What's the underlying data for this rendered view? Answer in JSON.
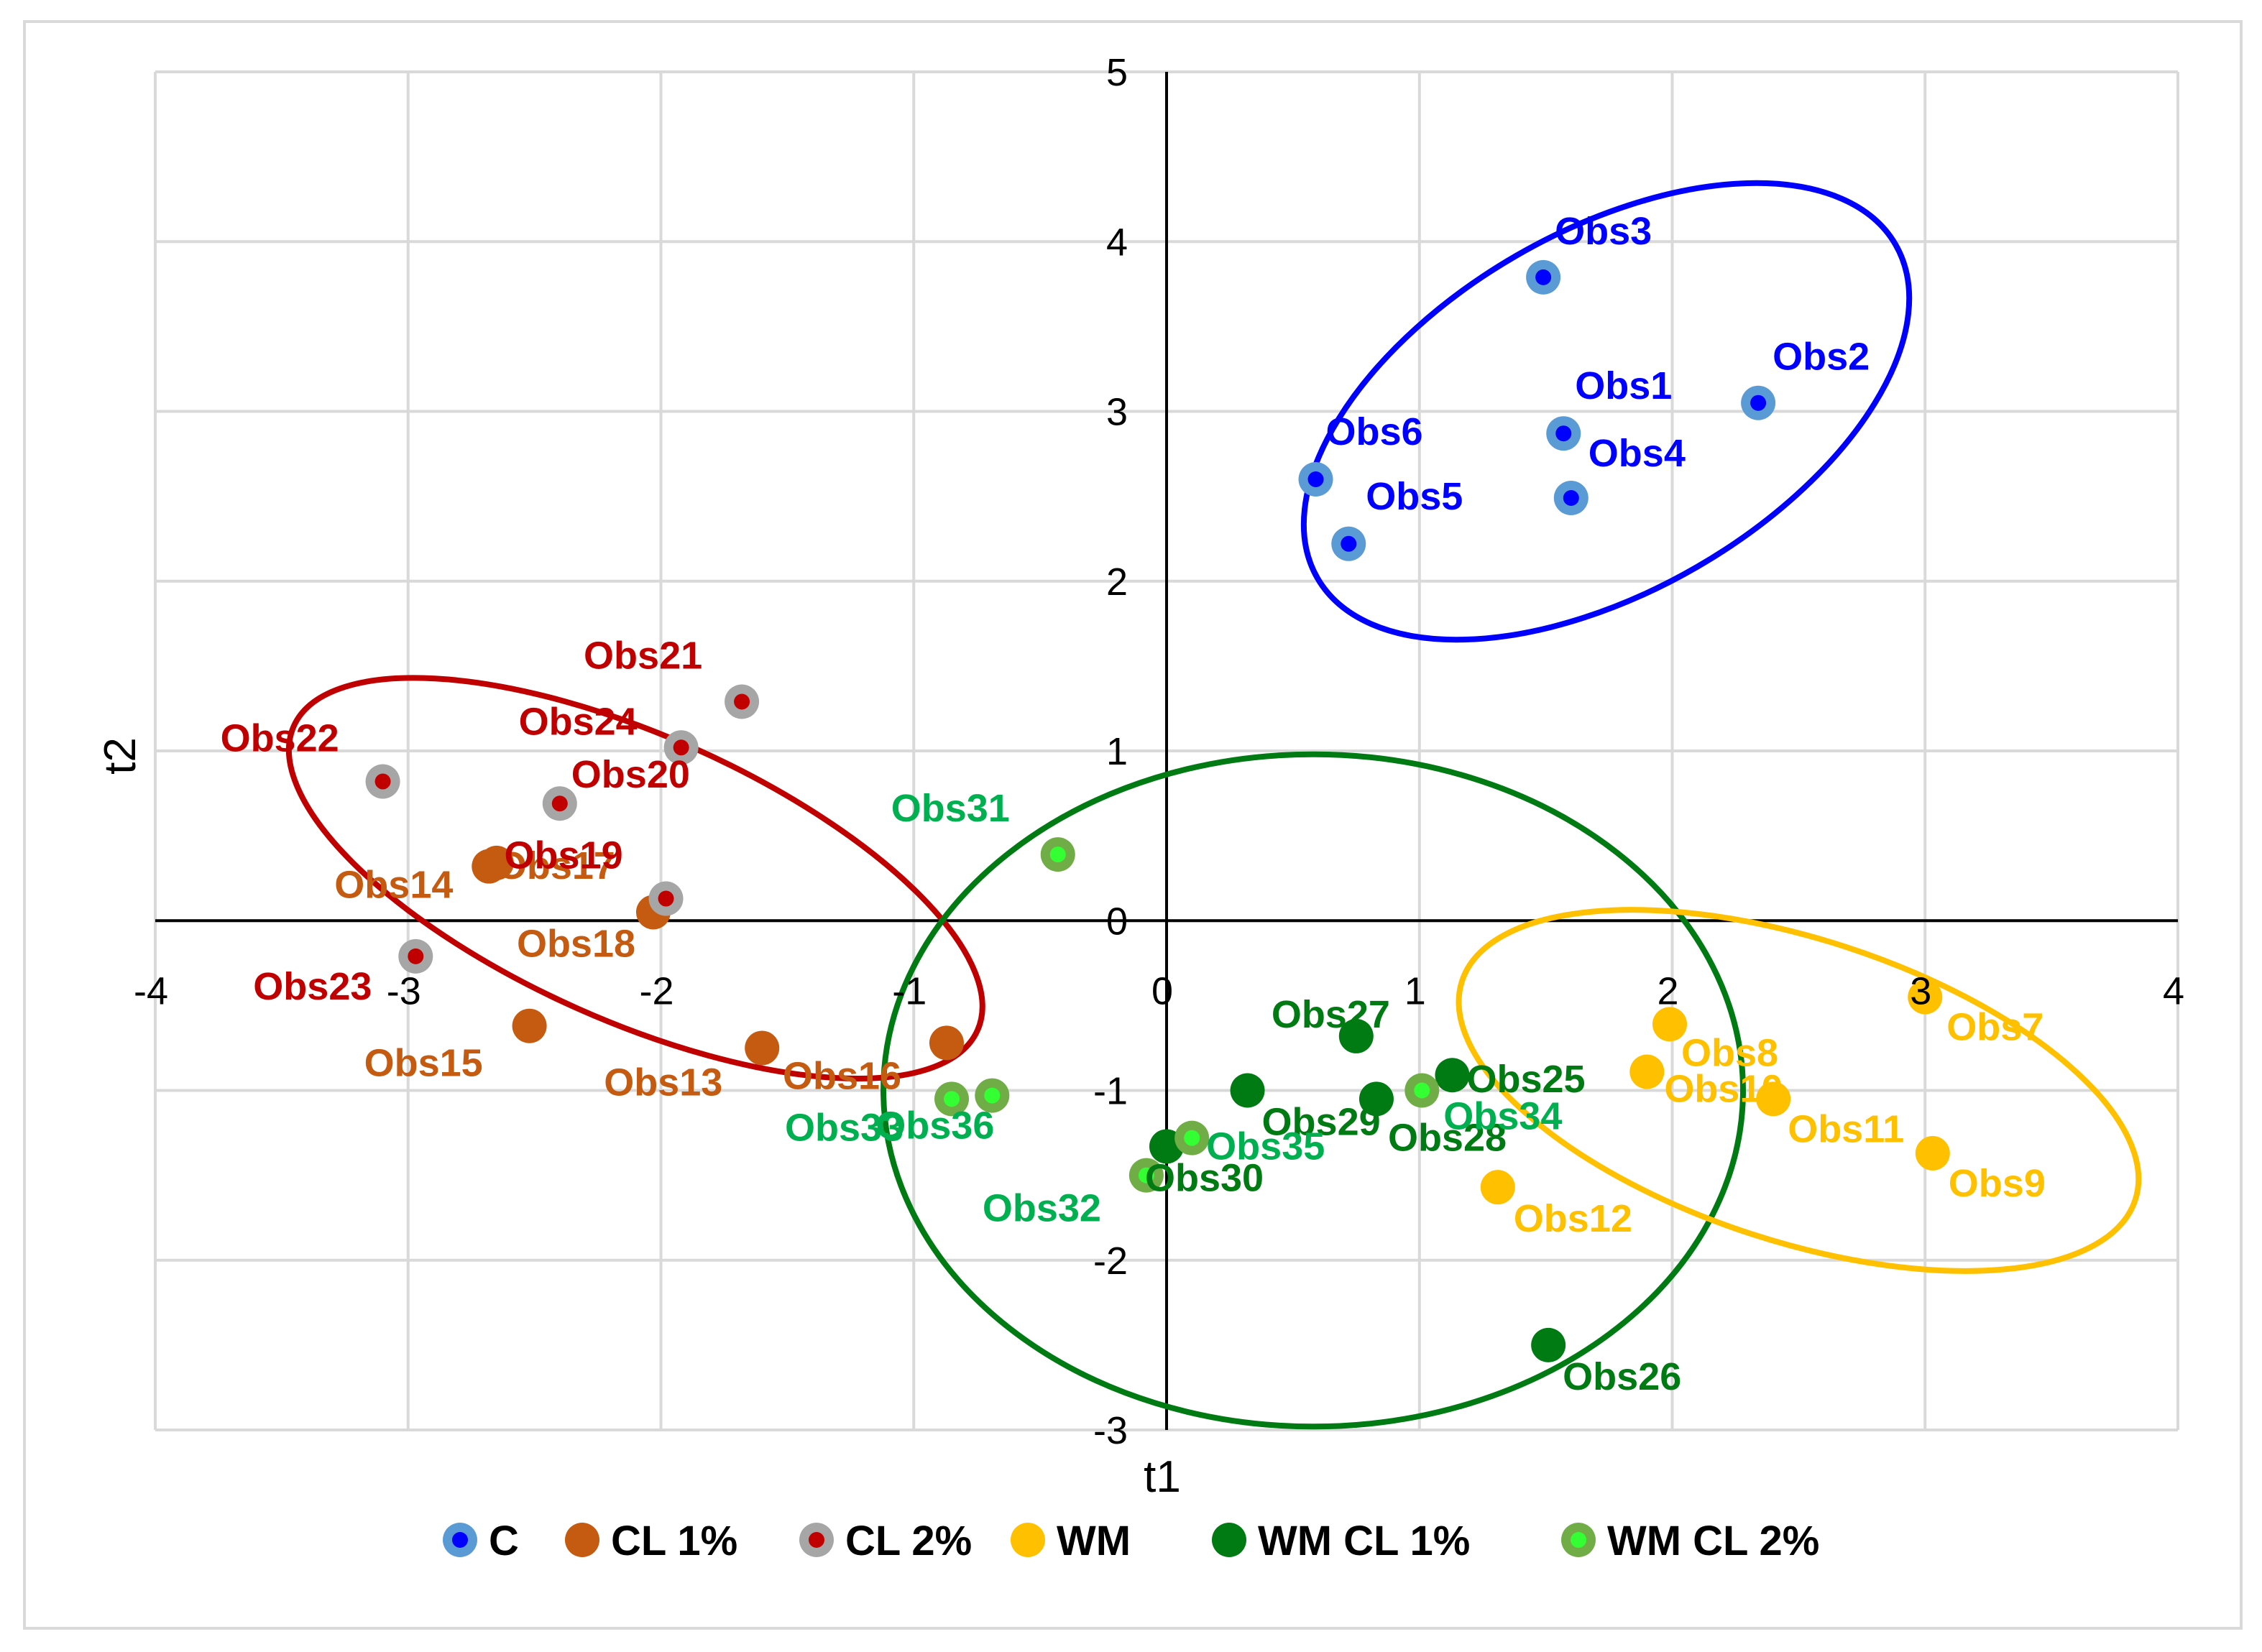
{
  "chart_data": {
    "type": "scatter",
    "title": "",
    "xlabel": "t1",
    "ylabel": "t2",
    "xlim": [
      -4,
      4
    ],
    "ylim": [
      -3,
      5
    ],
    "x_ticks": [
      "-4",
      "-3",
      "-2",
      "-1",
      "0",
      "1",
      "2",
      "3",
      "4"
    ],
    "y_ticks": [
      "-3",
      "-2",
      "-1",
      "0",
      "1",
      "2",
      "3",
      "4",
      "5"
    ],
    "grid": true,
    "legend_position": "bottom",
    "series": [
      {
        "name": "C",
        "outer_color": "#5B9BD5",
        "inner_color": "#0000FF",
        "label_color": "#0000FF",
        "points": [
          {
            "label": "Obs1",
            "x": 1.57,
            "y": 2.87
          },
          {
            "label": "Obs2",
            "x": 2.34,
            "y": 3.05
          },
          {
            "label": "Obs3",
            "x": 1.49,
            "y": 3.79
          },
          {
            "label": "Obs4",
            "x": 1.6,
            "y": 2.49
          },
          {
            "label": "Obs5",
            "x": 0.72,
            "y": 2.22
          },
          {
            "label": "Obs6",
            "x": 0.59,
            "y": 2.6
          }
        ]
      },
      {
        "name": "CL 1%",
        "outer_color": "#C55A11",
        "inner_color": "#C55A11",
        "label_color": "#C55A11",
        "points": [
          {
            "label": "Obs13",
            "x": -1.6,
            "y": -0.75
          },
          {
            "label": "Obs14",
            "x": -2.68,
            "y": 0.32
          },
          {
            "label": "Obs15",
            "x": -2.52,
            "y": -0.62
          },
          {
            "label": "Obs16",
            "x": -0.87,
            "y": -0.72
          },
          {
            "label": "Obs17",
            "x": -2.65,
            "y": 0.34
          },
          {
            "label": "Obs18",
            "x": -2.03,
            "y": 0.05
          }
        ]
      },
      {
        "name": "CL 2%",
        "outer_color": "#A6A6A6",
        "inner_color": "#C00000",
        "label_color": "#C00000",
        "points": [
          {
            "label": "Obs19",
            "x": -1.98,
            "y": 0.13
          },
          {
            "label": "Obs20",
            "x": -2.4,
            "y": 0.69
          },
          {
            "label": "Obs21",
            "x": -1.68,
            "y": 1.29
          },
          {
            "label": "Obs22",
            "x": -3.1,
            "y": 0.82
          },
          {
            "label": "Obs23",
            "x": -2.97,
            "y": -0.21
          },
          {
            "label": "Obs24",
            "x": -1.92,
            "y": 1.02
          }
        ]
      },
      {
        "name": "WM",
        "outer_color": "#FFC000",
        "inner_color": "#FFC000",
        "label_color": "#FFC000",
        "points": [
          {
            "label": "Obs7",
            "x": 3.0,
            "y": -0.45
          },
          {
            "label": "Obs8",
            "x": 1.99,
            "y": -0.61
          },
          {
            "label": "Obs9",
            "x": 3.03,
            "y": -1.37
          },
          {
            "label": "Obs10",
            "x": 1.9,
            "y": -0.89
          },
          {
            "label": "Obs11",
            "x": 2.4,
            "y": -1.05
          },
          {
            "label": "Obs12",
            "x": 1.31,
            "y": -1.57
          }
        ]
      },
      {
        "name": "WM CL 1%",
        "outer_color": "#007A12",
        "inner_color": "#007A12",
        "label_color": "#007A12",
        "points": [
          {
            "label": "Obs25",
            "x": 1.13,
            "y": -0.91
          },
          {
            "label": "Obs26",
            "x": 1.51,
            "y": -2.5
          },
          {
            "label": "Obs27",
            "x": 0.75,
            "y": -0.68
          },
          {
            "label": "Obs28",
            "x": 0.83,
            "y": -1.05
          },
          {
            "label": "Obs29",
            "x": 0.32,
            "y": -1.0
          },
          {
            "label": "Obs30",
            "x": 0.0,
            "y": -1.33
          }
        ]
      },
      {
        "name": "WM CL 2%",
        "outer_color": "#70AD47",
        "inner_color": "#33FF33",
        "label_color": "#00B050",
        "points": [
          {
            "label": "Obs31",
            "x": -0.43,
            "y": 0.39
          },
          {
            "label": "Obs32",
            "x": -0.08,
            "y": -1.5
          },
          {
            "label": "Obs33",
            "x": -0.85,
            "y": -1.05
          },
          {
            "label": "Obs34",
            "x": 1.01,
            "y": -1.0
          },
          {
            "label": "Obs35",
            "x": 0.1,
            "y": -1.28
          },
          {
            "label": "Obs36",
            "x": -0.69,
            "y": -1.03
          }
        ]
      }
    ],
    "ellipses": [
      {
        "group": "C",
        "color": "#0000FF",
        "cx": 1.74,
        "cy": 3.0,
        "rx": 1.32,
        "ry": 1.06,
        "angle_deg": 30
      },
      {
        "group": "CL",
        "color": "#C00000",
        "cx": -2.1,
        "cy": 0.25,
        "rx": 1.48,
        "ry": 0.84,
        "angle_deg": -24
      },
      {
        "group": "WM CL",
        "color": "#007A12",
        "cx": 0.58,
        "cy": -1.0,
        "rx": 1.7,
        "ry": 1.98,
        "angle_deg": 0
      },
      {
        "group": "WM",
        "color": "#FFC000",
        "cx": 2.5,
        "cy": -1.0,
        "rx": 1.4,
        "ry": 0.89,
        "angle_deg": -18
      }
    ]
  }
}
